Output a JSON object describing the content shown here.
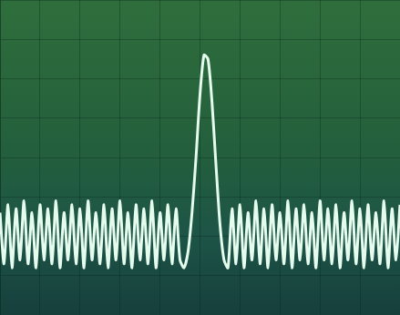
{
  "chart_data": {
    "type": "line",
    "x": [
      0,
      0.1,
      0.2,
      0.3,
      0.4,
      0.5,
      0.6,
      0.7,
      0.8,
      0.9,
      1,
      1.1,
      1.2,
      1.3,
      1.4,
      1.5,
      1.6,
      1.7,
      1.8,
      1.9,
      2,
      2.1,
      2.2,
      2.3,
      2.4,
      2.5,
      2.6,
      2.7,
      2.8,
      2.9,
      3,
      3.1,
      3.2,
      3.3,
      3.4,
      3.5,
      3.6,
      3.7,
      3.8,
      3.9,
      4,
      4.1,
      4.2,
      4.3,
      4.4,
      4.5,
      4.6,
      4.7,
      4.8,
      4.9,
      5,
      5.1,
      5.2,
      5.3,
      5.4,
      5.5,
      5.6,
      5.7,
      5.8,
      5.9,
      6,
      6.1,
      6.2,
      6.3,
      6.4,
      6.5,
      6.6,
      6.7,
      6.8,
      6.9,
      7,
      7.1,
      7.2,
      7.3,
      7.4,
      7.5,
      7.6,
      7.7,
      7.8,
      7.9,
      8,
      8.1,
      8.2,
      8.3,
      8.4,
      8.5,
      8.6,
      8.7,
      8.8,
      8.9,
      9,
      9.1,
      9.2,
      9.3,
      9.4,
      9.5,
      9.6,
      9.7,
      9.8,
      9.9,
      10
    ],
    "values": [
      2.6,
      1.3,
      2.8,
      1.2,
      2.7,
      1.4,
      2.9,
      1.3,
      2.6,
      1.2,
      2.8,
      1.4,
      2.7,
      1.3,
      2.9,
      1.2,
      2.6,
      1.4,
      2.8,
      1.3,
      2.7,
      1.2,
      2.9,
      1.4,
      2.6,
      1.3,
      2.8,
      1.2,
      2.7,
      1.4,
      2.9,
      1.3,
      2.6,
      1.2,
      2.8,
      1.4,
      2.7,
      1.3,
      2.9,
      1.2,
      2.6,
      1.4,
      2.8,
      1.3,
      2.7,
      1.4,
      1.2,
      1.6,
      2.6,
      4.0,
      5.6,
      6.6,
      6.5,
      5.4,
      3.8,
      2.3,
      1.4,
      1.2,
      2.7,
      1.3,
      2.8,
      1.2,
      2.6,
      1.4,
      2.9,
      1.3,
      2.7,
      1.2,
      2.8,
      1.4,
      2.6,
      1.3,
      2.9,
      1.2,
      2.7,
      1.4,
      2.8,
      1.3,
      2.6,
      1.2,
      2.9,
      1.4,
      2.7,
      1.3,
      2.8,
      1.2,
      2.6,
      1.4,
      2.9,
      1.3,
      2.7,
      1.2,
      2.8,
      1.4,
      2.6,
      1.3,
      2.9,
      1.2,
      2.7,
      1.4,
      2.8
    ],
    "color": "#e4fbee",
    "xlim": [
      0,
      10
    ],
    "xticks": [
      0,
      1,
      2,
      3,
      4,
      5,
      6,
      7,
      8,
      9,
      10
    ],
    "ylim": [
      0,
      8
    ],
    "yticks": [
      0,
      1,
      2,
      3,
      4,
      5,
      6,
      7,
      8
    ],
    "grid": true,
    "tick_labels": false
  }
}
